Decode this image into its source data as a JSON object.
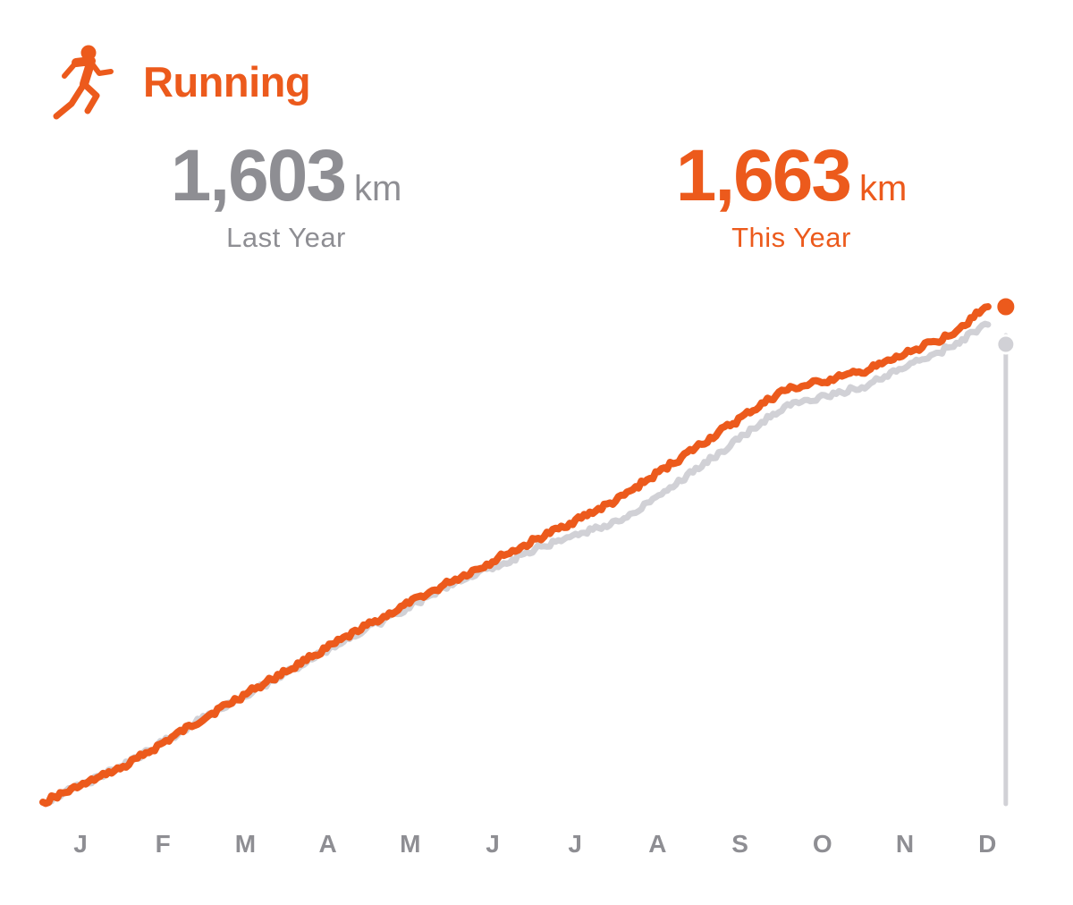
{
  "header": {
    "title": "Running",
    "icon": "running-figure-icon",
    "accent": "#ec5a1c"
  },
  "stats": {
    "last_year": {
      "value": "1,603",
      "unit": "km",
      "label": "Last Year",
      "color": "#8e8e93"
    },
    "this_year": {
      "value": "1,663",
      "unit": "km",
      "label": "This Year",
      "color": "#ec5a1c"
    }
  },
  "chart_data": {
    "type": "line",
    "xlabel": "",
    "ylabel": "",
    "categories": [
      "J",
      "F",
      "M",
      "A",
      "M",
      "J",
      "J",
      "A",
      "S",
      "O",
      "N",
      "D"
    ],
    "x": [
      0,
      0.5,
      1,
      2,
      3,
      4,
      5,
      6,
      7,
      8,
      9,
      10,
      11,
      11.5
    ],
    "ylim": [
      0,
      1663
    ],
    "grid": false,
    "series": [
      {
        "color": "#ec5a1c",
        "values": [
          0,
          58,
          120,
          290,
          445,
          600,
          745,
          880,
          1015,
          1200,
          1380,
          1445,
          1563,
          1663
        ]
      },
      {
        "color": "#d1d1d6",
        "values": [
          0,
          60,
          125,
          290,
          440,
          590,
          735,
          850,
          940,
          1125,
          1325,
          1395,
          1523,
          1603
        ]
      }
    ]
  }
}
